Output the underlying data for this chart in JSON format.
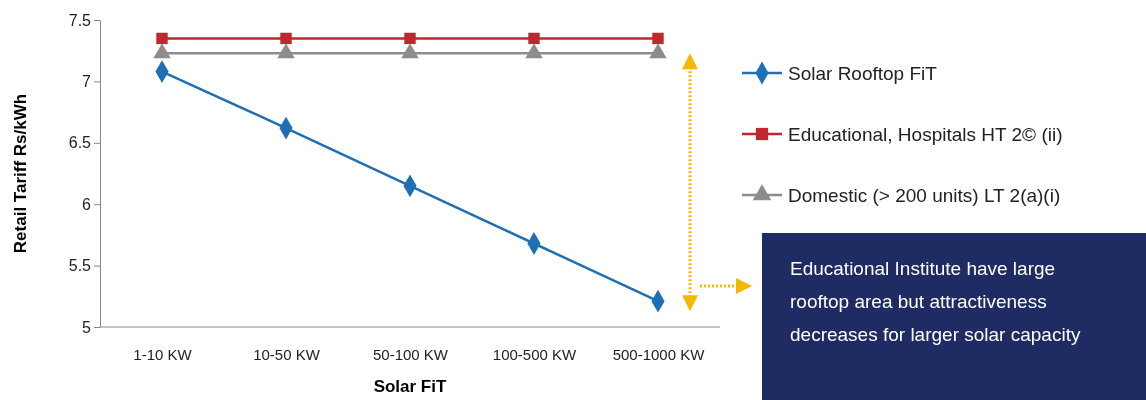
{
  "chart_data": {
    "type": "line",
    "xlabel": "Solar FiT",
    "ylabel": "Retail Tariff Rs/kWh",
    "categories": [
      "1-10 KW",
      "10-50 KW",
      "50-100 KW",
      "100-500 KW",
      "500-1000 KW"
    ],
    "series": [
      {
        "name": "Solar Rooftop FiT",
        "color": "#1f6fb5",
        "marker": "diamond",
        "values": [
          7.08,
          6.62,
          6.15,
          5.68,
          5.21
        ]
      },
      {
        "name": "Educational, Hospitals HT 2© (ii)",
        "color": "#c0272d",
        "marker": "square",
        "values": [
          7.35,
          7.35,
          7.35,
          7.35,
          7.35
        ]
      },
      {
        "name": "Domestic (> 200 units) LT 2(a)(i)",
        "color": "#8c8c8c",
        "marker": "triangle",
        "values": [
          7.23,
          7.23,
          7.23,
          7.23,
          7.23
        ]
      }
    ],
    "ylim": [
      5,
      7.5
    ],
    "yticks": [
      5,
      5.5,
      6,
      6.5,
      7,
      7.5
    ],
    "grid": false,
    "legend": "right",
    "annotations": [
      "Educational Institute have large rooftop area but attractiveness decreases for larger solar capacity"
    ]
  }
}
